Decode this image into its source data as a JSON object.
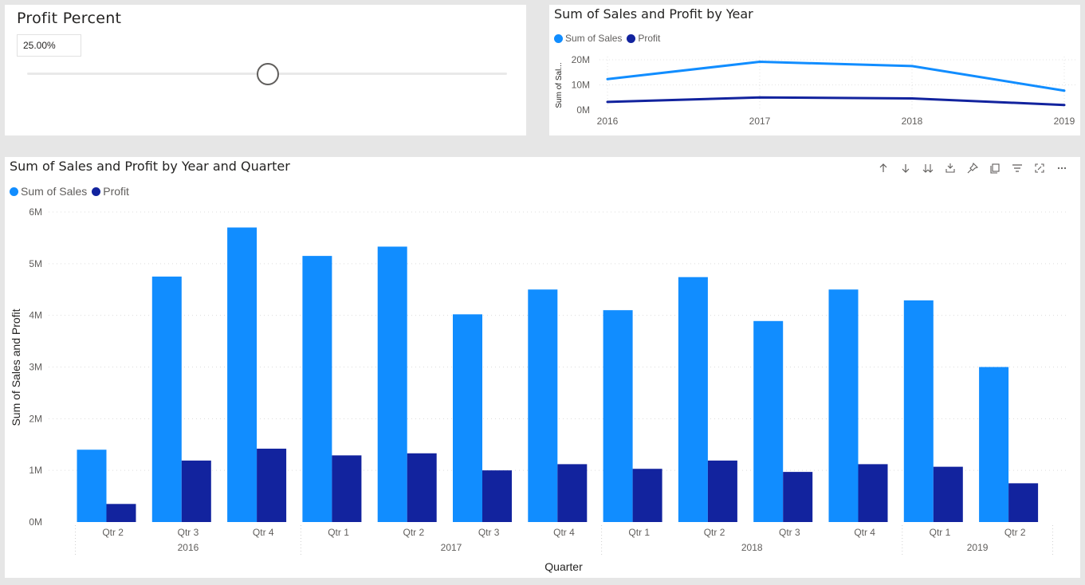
{
  "slicer": {
    "title": "Profit Percent",
    "value": "25.00%",
    "position": 0.5
  },
  "colors": {
    "sales": "#118dff",
    "profit": "#12239e"
  },
  "line_chart": {
    "title": "Sum of Sales and Profit by Year",
    "legend": [
      "Sum of Sales",
      "Profit"
    ],
    "ylabel": "Sum of Sal...",
    "ytick_labels": [
      "20M",
      "10M",
      "0M"
    ]
  },
  "bar_chart": {
    "title": "Sum of Sales and Profit by Year and Quarter",
    "legend": [
      "Sum of Sales",
      "Profit"
    ],
    "ylabel": "Sum of Sales and Profit",
    "xlabel": "Quarter",
    "ytick_labels": [
      "6M",
      "5M",
      "4M",
      "3M",
      "2M",
      "1M",
      "0M"
    ],
    "years": [
      "2016",
      "2017",
      "2018",
      "2019"
    ]
  },
  "toolbar": {
    "icons": [
      "drill-up-icon",
      "drill-down-icon",
      "expand-next-level-icon",
      "expand-all-icon",
      "pin-icon",
      "copy-icon",
      "filter-icon",
      "focus-mode-icon",
      "more-options-icon"
    ]
  },
  "chart_data": [
    {
      "type": "line",
      "title": "Sum of Sales and Profit by Year",
      "x": [
        "2016",
        "2017",
        "2018",
        "2019"
      ],
      "series": [
        {
          "name": "Sum of Sales",
          "values": [
            12.3,
            19.2,
            17.5,
            7.7
          ]
        },
        {
          "name": "Profit",
          "values": [
            3.2,
            5.0,
            4.6,
            2.0
          ]
        }
      ],
      "ylabel": "Sum of Sal...",
      "ylim": [
        0,
        20
      ],
      "ytick_labels": [
        "0M",
        "10M",
        "20M"
      ],
      "unit": "M",
      "grid": true,
      "legend": "top-left"
    },
    {
      "type": "bar",
      "title": "Sum of Sales and Profit by Year and Quarter",
      "categories": [
        "Qtr 2",
        "Qtr 3",
        "Qtr 4",
        "Qtr 1",
        "Qtr 2",
        "Qtr 3",
        "Qtr 4",
        "Qtr 1",
        "Qtr 2",
        "Qtr 3",
        "Qtr 4",
        "Qtr 1",
        "Qtr 2"
      ],
      "category_years": [
        "2016",
        "2016",
        "2016",
        "2017",
        "2017",
        "2017",
        "2017",
        "2018",
        "2018",
        "2018",
        "2018",
        "2019",
        "2019"
      ],
      "series": [
        {
          "name": "Sum of Sales",
          "values": [
            1.4,
            4.75,
            5.7,
            5.15,
            5.33,
            4.02,
            4.5,
            4.1,
            4.74,
            3.89,
            4.5,
            4.29,
            3.0
          ]
        },
        {
          "name": "Profit",
          "values": [
            0.35,
            1.19,
            1.42,
            1.29,
            1.33,
            1.0,
            1.12,
            1.03,
            1.19,
            0.97,
            1.12,
            1.07,
            0.75
          ]
        }
      ],
      "xlabel": "Quarter",
      "ylabel": "Sum of Sales and Profit",
      "ylim": [
        0,
        6
      ],
      "unit": "M",
      "grid": true,
      "legend": "top-left"
    }
  ]
}
